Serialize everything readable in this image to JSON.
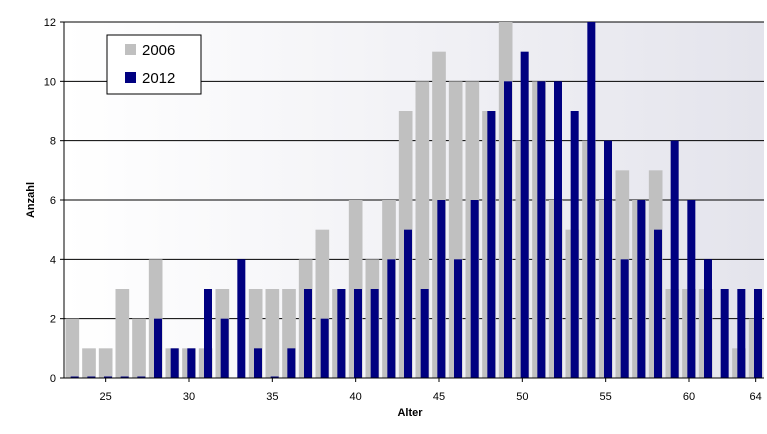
{
  "chart_data": {
    "type": "bar",
    "title": "",
    "xlabel": "Alter",
    "ylabel": "Anzahl",
    "x": [
      23,
      24,
      25,
      26,
      27,
      28,
      29,
      30,
      31,
      32,
      33,
      34,
      35,
      36,
      37,
      38,
      39,
      40,
      41,
      42,
      43,
      44,
      45,
      46,
      47,
      48,
      49,
      50,
      51,
      52,
      53,
      54,
      55,
      56,
      57,
      58,
      59,
      60,
      61,
      62,
      63,
      64
    ],
    "x_ticks": [
      25,
      30,
      35,
      40,
      45,
      50,
      55,
      60,
      64
    ],
    "xlim": [
      22.5,
      64.5
    ],
    "ylim": [
      0,
      12
    ],
    "y_ticks": [
      0,
      2,
      4,
      6,
      8,
      10,
      12
    ],
    "grid": "horizontal",
    "legend_position": "top-left",
    "series": [
      {
        "name": "2006",
        "color": "#c0c0c0",
        "values": [
          2,
          1,
          1,
          3,
          2,
          4,
          1,
          1,
          1,
          3,
          0,
          3,
          3,
          3,
          4,
          5,
          3,
          6,
          4,
          6,
          9,
          10,
          11,
          10,
          10,
          9,
          12,
          8,
          10,
          6,
          5,
          8,
          6,
          7,
          6,
          7,
          3,
          3,
          3,
          0,
          1,
          2
        ]
      },
      {
        "name": "2012",
        "color": "#000080",
        "values": [
          0,
          0,
          0,
          0,
          0,
          2,
          1,
          1,
          3,
          2,
          4,
          1,
          0,
          1,
          3,
          2,
          3,
          3,
          3,
          4,
          5,
          3,
          6,
          4,
          6,
          9,
          10,
          11,
          10,
          10,
          9,
          12,
          8,
          4,
          6,
          5,
          8,
          6,
          4,
          3,
          3,
          3
        ]
      }
    ]
  }
}
